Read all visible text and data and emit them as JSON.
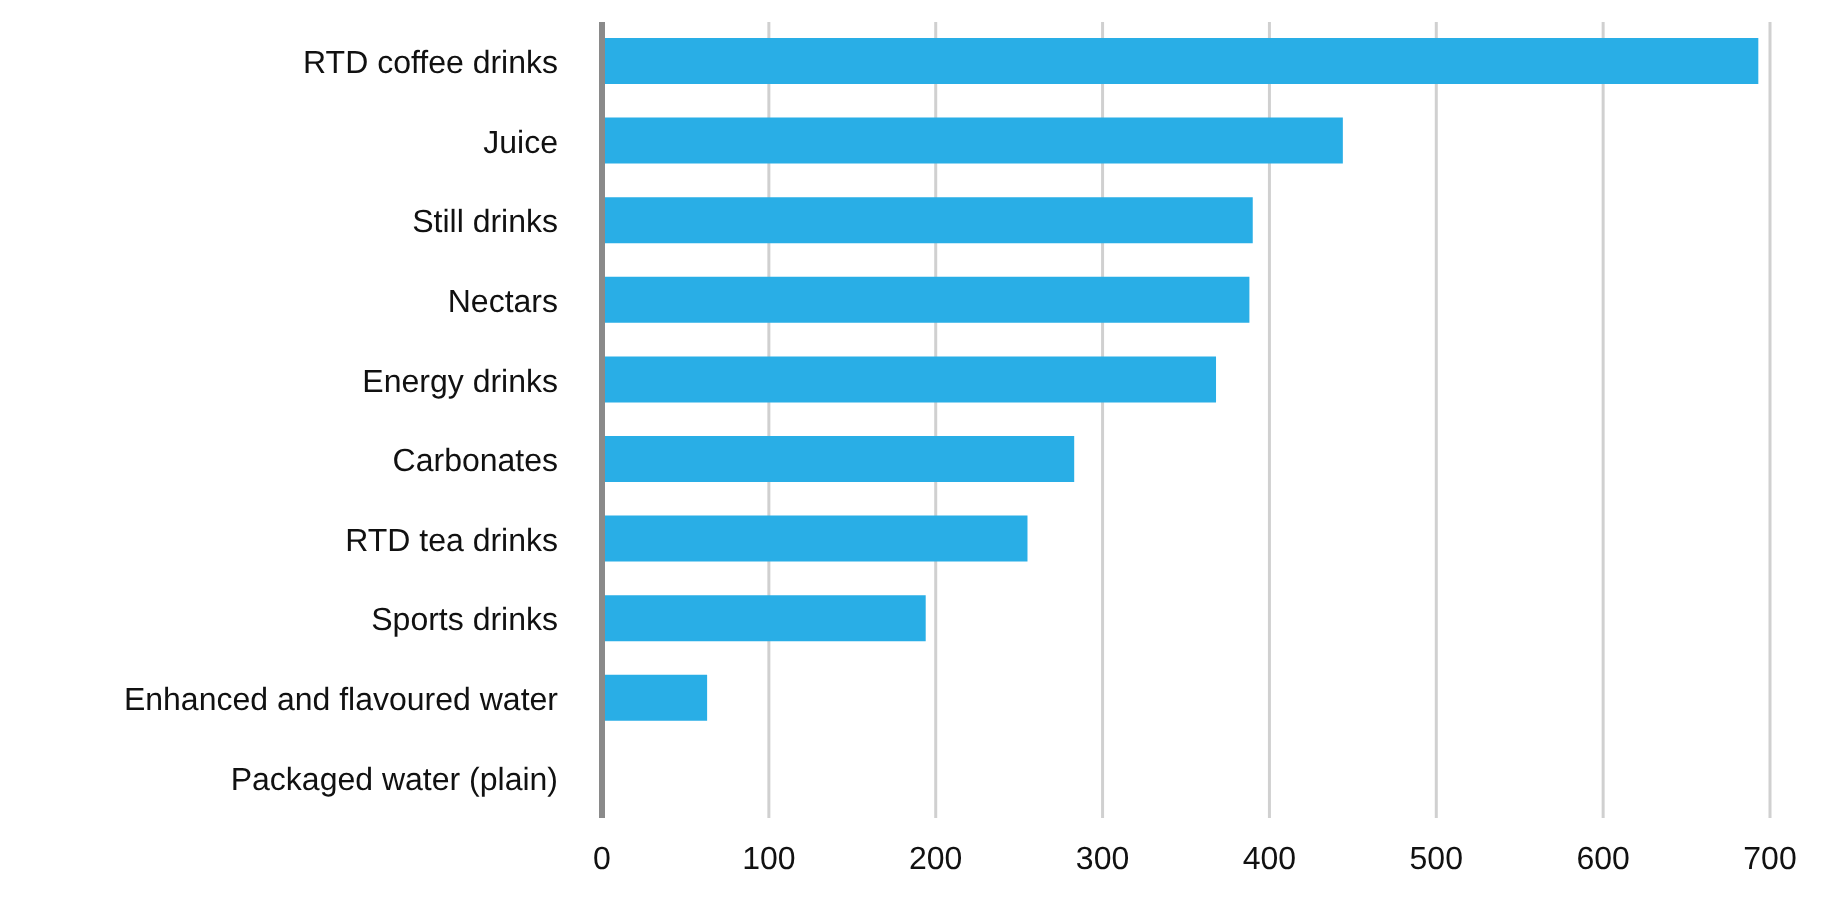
{
  "chart_data": {
    "type": "bar",
    "orientation": "horizontal",
    "categories": [
      "RTD coffee drinks",
      "Juice",
      "Still drinks",
      "Nectars",
      "Energy drinks",
      "Carbonates",
      "RTD tea drinks",
      "Sports drinks",
      "Enhanced and flavoured water",
      "Packaged water (plain)"
    ],
    "values": [
      693,
      444,
      390,
      388,
      368,
      283,
      255,
      194,
      63,
      0
    ],
    "color": "#29aee6",
    "xlim": [
      0,
      700
    ],
    "xticks": [
      0,
      100,
      200,
      300,
      400,
      500,
      600,
      700
    ],
    "grid": "x"
  }
}
